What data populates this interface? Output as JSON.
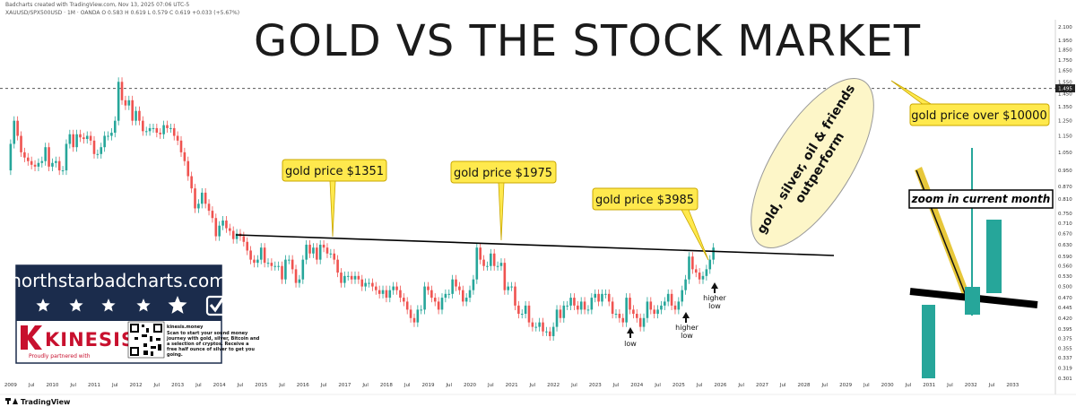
{
  "header": {
    "attribution": "Badcharts created with TradingView.com, Nov 13, 2025 07:06 UTC-5",
    "symbol_line": "XAUUSD/SPX500USD · 1M · OANDA  O 0.583  H 0.619  L 0.579  C 0.619  +0.033 (+5.67%)"
  },
  "title": "GOLD VS THE STOCK MARKET",
  "callouts": [
    {
      "id": "gold-1351",
      "text": "gold price $1351"
    },
    {
      "id": "gold-1975",
      "text": "gold price $1975"
    },
    {
      "id": "gold-3985",
      "text": "gold price $3985"
    },
    {
      "id": "gold-10000",
      "text": "gold price over $10000"
    }
  ],
  "ellipse_text": [
    "gold, silver, oil & friends",
    "outperform"
  ],
  "annotations": {
    "low": "low",
    "higher_low_1": [
      "higher",
      "low"
    ],
    "higher_low_2": [
      "higher",
      "low"
    ]
  },
  "zoom_label": "zoom in current month",
  "resistance_level_label": "1.495",
  "brand_box": {
    "url": "northstarbadcharts.com",
    "stars": 5,
    "kinesis_name": "KINESIS",
    "kinesis_partner": "Proudly partnered with",
    "kinesis_site": "kinesis.money",
    "kinesis_desc": [
      "Scan to start your sound money",
      "journey with gold, silver, Bitcoin and",
      "a selection of cryptos. Receive a",
      "free half ounce of silver to get you",
      "going."
    ]
  },
  "footer": {
    "tradingview": "TradingView"
  },
  "colors": {
    "up": "#26a69a",
    "down": "#ef5350",
    "callout_fill": "#ffe94d",
    "ellipse_fill": "#fdf6c8",
    "brand_navy": "#1b2c4c",
    "kinesis_red": "#c8102e"
  },
  "chart_data": {
    "type": "candlestick",
    "title": "GOLD VS THE STOCK MARKET",
    "symbol": "XAUUSD/SPX500USD",
    "interval": "1M",
    "y_axis_ticks": [
      "2.100",
      "1.950",
      "1.850",
      "1.750",
      "1.650",
      "1.550",
      "1.450",
      "1.350",
      "1.250",
      "1.150",
      "1.050",
      "0.950",
      "0.870",
      "0.810",
      "0.750",
      "0.710",
      "0.670",
      "0.630",
      "0.590",
      "0.560",
      "0.530",
      "0.500",
      "0.470",
      "0.445",
      "0.420",
      "0.395",
      "0.375",
      "0.355",
      "0.337",
      "0.319",
      "0.301"
    ],
    "x_axis_ticks": [
      "2009",
      "Jul",
      "2010",
      "Jul",
      "2011",
      "Jul",
      "2012",
      "Jul",
      "2013",
      "Jul",
      "2014",
      "Jul",
      "2015",
      "Jul",
      "2016",
      "Jul",
      "2017",
      "Jul",
      "2018",
      "Jul",
      "2019",
      "Jul",
      "2020",
      "Jul",
      "2021",
      "Jul",
      "2022",
      "Jul",
      "2023",
      "Jul",
      "2024",
      "Jul",
      "2025",
      "Jul",
      "2026",
      "Jul",
      "2027",
      "Jul",
      "2028",
      "Jul",
      "2029",
      "Jul",
      "2030",
      "Jul",
      "2031",
      "Jul",
      "2032",
      "Jul",
      "2033"
    ],
    "ylim": [
      0.301,
      2.1
    ],
    "scale": "log",
    "resistance_dashed": 1.495,
    "trendline": {
      "from": {
        "date": "2014-07",
        "value": 0.64
      },
      "to": {
        "date": "2026-03",
        "value": 0.57
      }
    },
    "monthly_close": [
      [
        "2008-12",
        0.95
      ],
      [
        "2009-01",
        1.1
      ],
      [
        "2009-02",
        1.25
      ],
      [
        "2009-03",
        1.15
      ],
      [
        "2009-04",
        1.05
      ],
      [
        "2009-05",
        1.02
      ],
      [
        "2009-06",
        1.0
      ],
      [
        "2009-07",
        0.98
      ],
      [
        "2009-08",
        0.97
      ],
      [
        "2009-09",
        0.99
      ],
      [
        "2009-10",
        1.0
      ],
      [
        "2009-11",
        1.08
      ],
      [
        "2009-12",
        0.97
      ],
      [
        "2010-01",
        0.99
      ],
      [
        "2010-02",
        1.0
      ],
      [
        "2010-03",
        0.95
      ],
      [
        "2010-04",
        0.95
      ],
      [
        "2010-05",
        1.1
      ],
      [
        "2010-06",
        1.16
      ],
      [
        "2010-07",
        1.08
      ],
      [
        "2010-08",
        1.16
      ],
      [
        "2010-09",
        1.14
      ],
      [
        "2010-10",
        1.13
      ],
      [
        "2010-11",
        1.15
      ],
      [
        "2010-12",
        1.12
      ],
      [
        "2011-01",
        1.04
      ],
      [
        "2011-02",
        1.04
      ],
      [
        "2011-03",
        1.08
      ],
      [
        "2011-04",
        1.15
      ],
      [
        "2011-05",
        1.15
      ],
      [
        "2011-06",
        1.17
      ],
      [
        "2011-07",
        1.25
      ],
      [
        "2011-08",
        1.55
      ],
      [
        "2011-09",
        1.4
      ],
      [
        "2011-10",
        1.36
      ],
      [
        "2011-11",
        1.4
      ],
      [
        "2011-12",
        1.25
      ],
      [
        "2012-01",
        1.32
      ],
      [
        "2012-02",
        1.25
      ],
      [
        "2012-03",
        1.18
      ],
      [
        "2012-04",
        1.18
      ],
      [
        "2012-05",
        1.2
      ],
      [
        "2012-06",
        1.2
      ],
      [
        "2012-07",
        1.17
      ],
      [
        "2012-08",
        1.16
      ],
      [
        "2012-09",
        1.22
      ],
      [
        "2012-10",
        1.2
      ],
      [
        "2012-11",
        1.2
      ],
      [
        "2012-12",
        1.15
      ],
      [
        "2013-01",
        1.12
      ],
      [
        "2013-02",
        1.05
      ],
      [
        "2013-03",
        1.0
      ],
      [
        "2013-04",
        0.92
      ],
      [
        "2013-05",
        0.86
      ],
      [
        "2013-06",
        0.77
      ],
      [
        "2013-07",
        0.79
      ],
      [
        "2013-08",
        0.84
      ],
      [
        "2013-09",
        0.79
      ],
      [
        "2013-10",
        0.76
      ],
      [
        "2013-11",
        0.73
      ],
      [
        "2013-12",
        0.66
      ],
      [
        "2014-01",
        0.7
      ],
      [
        "2014-02",
        0.72
      ],
      [
        "2014-03",
        0.69
      ],
      [
        "2014-04",
        0.68
      ],
      [
        "2014-05",
        0.65
      ],
      [
        "2014-06",
        0.67
      ],
      [
        "2014-07",
        0.66
      ],
      [
        "2014-08",
        0.64
      ],
      [
        "2014-09",
        0.61
      ],
      [
        "2014-10",
        0.58
      ],
      [
        "2014-11",
        0.57
      ],
      [
        "2014-12",
        0.58
      ],
      [
        "2015-01",
        0.62
      ],
      [
        "2015-02",
        0.57
      ],
      [
        "2015-03",
        0.57
      ],
      [
        "2015-04",
        0.56
      ],
      [
        "2015-05",
        0.56
      ],
      [
        "2015-06",
        0.56
      ],
      [
        "2015-07",
        0.52
      ],
      [
        "2015-08",
        0.58
      ],
      [
        "2015-09",
        0.58
      ],
      [
        "2015-10",
        0.55
      ],
      [
        "2015-11",
        0.51
      ],
      [
        "2015-12",
        0.52
      ],
      [
        "2016-01",
        0.58
      ],
      [
        "2016-02",
        0.63
      ],
      [
        "2016-03",
        0.6
      ],
      [
        "2016-04",
        0.62
      ],
      [
        "2016-05",
        0.58
      ],
      [
        "2016-06",
        0.63
      ],
      [
        "2016-07",
        0.62
      ],
      [
        "2016-08",
        0.6
      ],
      [
        "2016-09",
        0.6
      ],
      [
        "2016-10",
        0.58
      ],
      [
        "2016-11",
        0.54
      ],
      [
        "2016-12",
        0.51
      ],
      [
        "2017-01",
        0.53
      ],
      [
        "2017-02",
        0.53
      ],
      [
        "2017-03",
        0.52
      ],
      [
        "2017-04",
        0.53
      ],
      [
        "2017-05",
        0.52
      ],
      [
        "2017-06",
        0.5
      ],
      [
        "2017-07",
        0.51
      ],
      [
        "2017-08",
        0.51
      ],
      [
        "2017-09",
        0.5
      ],
      [
        "2017-10",
        0.49
      ],
      [
        "2017-11",
        0.48
      ],
      [
        "2017-12",
        0.49
      ],
      [
        "2018-01",
        0.47
      ],
      [
        "2018-02",
        0.49
      ],
      [
        "2018-03",
        0.5
      ],
      [
        "2018-04",
        0.49
      ],
      [
        "2018-05",
        0.47
      ],
      [
        "2018-06",
        0.46
      ],
      [
        "2018-07",
        0.44
      ],
      [
        "2018-08",
        0.42
      ],
      [
        "2018-09",
        0.41
      ],
      [
        "2018-10",
        0.44
      ],
      [
        "2018-11",
        0.44
      ],
      [
        "2018-12",
        0.5
      ],
      [
        "2019-01",
        0.49
      ],
      [
        "2019-02",
        0.47
      ],
      [
        "2019-03",
        0.46
      ],
      [
        "2019-04",
        0.44
      ],
      [
        "2019-05",
        0.47
      ],
      [
        "2019-06",
        0.48
      ],
      [
        "2019-07",
        0.48
      ],
      [
        "2019-08",
        0.52
      ],
      [
        "2019-09",
        0.5
      ],
      [
        "2019-10",
        0.49
      ],
      [
        "2019-11",
        0.46
      ],
      [
        "2019-12",
        0.47
      ],
      [
        "2020-01",
        0.49
      ],
      [
        "2020-02",
        0.52
      ],
      [
        "2020-03",
        0.62
      ],
      [
        "2020-04",
        0.58
      ],
      [
        "2020-05",
        0.56
      ],
      [
        "2020-06",
        0.56
      ],
      [
        "2020-07",
        0.6
      ],
      [
        "2020-08",
        0.56
      ],
      [
        "2020-09",
        0.56
      ],
      [
        "2020-10",
        0.57
      ],
      [
        "2020-11",
        0.49
      ],
      [
        "2020-12",
        0.5
      ],
      [
        "2021-01",
        0.5
      ],
      [
        "2021-02",
        0.45
      ],
      [
        "2021-03",
        0.43
      ],
      [
        "2021-04",
        0.43
      ],
      [
        "2021-05",
        0.45
      ],
      [
        "2021-06",
        0.41
      ],
      [
        "2021-07",
        0.4
      ],
      [
        "2021-08",
        0.4
      ],
      [
        "2021-09",
        0.41
      ],
      [
        "2021-10",
        0.39
      ],
      [
        "2021-11",
        0.39
      ],
      [
        "2021-12",
        0.38
      ],
      [
        "2022-01",
        0.4
      ],
      [
        "2022-02",
        0.44
      ],
      [
        "2022-03",
        0.42
      ],
      [
        "2022-04",
        0.45
      ],
      [
        "2022-05",
        0.45
      ],
      [
        "2022-06",
        0.47
      ],
      [
        "2022-07",
        0.45
      ],
      [
        "2022-08",
        0.44
      ],
      [
        "2022-09",
        0.46
      ],
      [
        "2022-10",
        0.44
      ],
      [
        "2022-11",
        0.44
      ],
      [
        "2022-12",
        0.47
      ],
      [
        "2023-01",
        0.48
      ],
      [
        "2023-02",
        0.46
      ],
      [
        "2023-03",
        0.48
      ],
      [
        "2023-04",
        0.48
      ],
      [
        "2023-05",
        0.46
      ],
      [
        "2023-06",
        0.43
      ],
      [
        "2023-07",
        0.43
      ],
      [
        "2023-08",
        0.42
      ],
      [
        "2023-09",
        0.41
      ],
      [
        "2023-10",
        0.47
      ],
      [
        "2023-11",
        0.44
      ],
      [
        "2023-12",
        0.43
      ],
      [
        "2024-01",
        0.42
      ],
      [
        "2024-02",
        0.4
      ],
      [
        "2024-03",
        0.42
      ],
      [
        "2024-04",
        0.46
      ],
      [
        "2024-05",
        0.44
      ],
      [
        "2024-06",
        0.43
      ],
      [
        "2024-07",
        0.44
      ],
      [
        "2024-08",
        0.45
      ],
      [
        "2024-09",
        0.46
      ],
      [
        "2024-10",
        0.48
      ],
      [
        "2024-11",
        0.45
      ],
      [
        "2024-12",
        0.44
      ],
      [
        "2025-01",
        0.46
      ],
      [
        "2025-02",
        0.49
      ],
      [
        "2025-03",
        0.52
      ],
      [
        "2025-04",
        0.59
      ],
      [
        "2025-05",
        0.55
      ],
      [
        "2025-06",
        0.54
      ],
      [
        "2025-07",
        0.52
      ],
      [
        "2025-08",
        0.53
      ],
      [
        "2025-09",
        0.55
      ],
      [
        "2025-10",
        0.58
      ],
      [
        "2025-11",
        0.62
      ]
    ]
  }
}
